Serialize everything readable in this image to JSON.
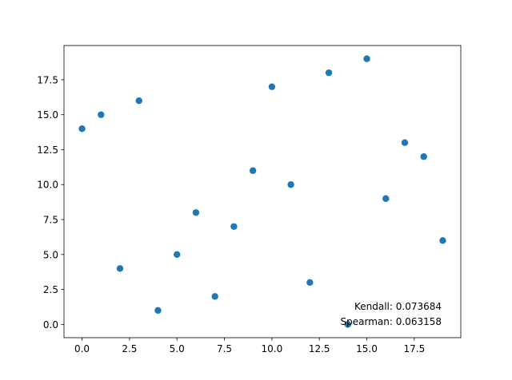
{
  "chart_data": {
    "type": "scatter",
    "title": "",
    "xlabel": "",
    "ylabel": "",
    "xlim": [
      -0.95,
      19.95
    ],
    "ylim": [
      -0.95,
      19.95
    ],
    "grid": false,
    "legend": "none",
    "marker_color": "#1f77b4",
    "series": [
      {
        "x": [
          0,
          1,
          2,
          3,
          4,
          5,
          6,
          7,
          8,
          9,
          10,
          11,
          12,
          13,
          14,
          15,
          16,
          17,
          18,
          19
        ],
        "y": [
          14,
          15,
          4,
          16,
          1,
          5,
          8,
          2,
          7,
          11,
          17,
          10,
          3,
          18,
          0,
          19,
          9,
          13,
          12,
          6
        ]
      }
    ],
    "x_ticks": [
      0.0,
      2.5,
      5.0,
      7.5,
      10.0,
      12.5,
      15.0,
      17.5
    ],
    "y_ticks": [
      0.0,
      2.5,
      5.0,
      7.5,
      10.0,
      12.5,
      15.0,
      17.5
    ],
    "x_tick_labels": [
      "0.0",
      "2.5",
      "5.0",
      "7.5",
      "10.0",
      "12.5",
      "15.0",
      "17.5"
    ],
    "y_tick_labels": [
      "0.0",
      "2.5",
      "5.0",
      "7.5",
      "10.0",
      "12.5",
      "15.0",
      "17.5"
    ],
    "annotations": {
      "kendall": "Kendall: 0.073684",
      "spearman": "Spearman: 0.063158"
    }
  }
}
